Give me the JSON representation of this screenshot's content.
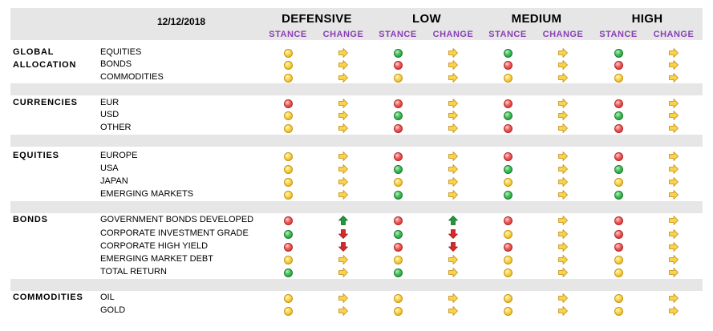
{
  "date": "12/12/2018",
  "profiles": [
    {
      "name": "DEFENSIVE",
      "stance_label": "STANCE",
      "change_label": "CHANGE"
    },
    {
      "name": "LOW",
      "stance_label": "STANCE",
      "change_label": "CHANGE"
    },
    {
      "name": "MEDIUM",
      "stance_label": "STANCE",
      "change_label": "CHANGE"
    },
    {
      "name": "HIGH",
      "stance_label": "STANCE",
      "change_label": "CHANGE"
    }
  ],
  "colors": {
    "yellow": "#f9d44a",
    "green": "#3fbf5a",
    "red": "#ef5b5b",
    "header_bg": "#e6e6e6",
    "sub_label": "#8a3fb5",
    "arrow_up": "#1f9a3a",
    "arrow_down": "#d62a2a"
  },
  "sections": [
    {
      "title": "GLOBAL\nALLOCATION",
      "rows": [
        {
          "label": "EQUITIES",
          "cells": [
            [
              "yellow",
              "right"
            ],
            [
              "green",
              "right"
            ],
            [
              "green",
              "right"
            ],
            [
              "green",
              "right"
            ]
          ]
        },
        {
          "label": "BONDS",
          "cells": [
            [
              "yellow",
              "right"
            ],
            [
              "red",
              "right"
            ],
            [
              "red",
              "right"
            ],
            [
              "red",
              "right"
            ]
          ]
        },
        {
          "label": "COMMODITIES",
          "cells": [
            [
              "yellow",
              "right"
            ],
            [
              "yellow",
              "right"
            ],
            [
              "yellow",
              "right"
            ],
            [
              "yellow",
              "right"
            ]
          ]
        }
      ]
    },
    {
      "title": "CURRENCIES",
      "rows": [
        {
          "label": "EUR",
          "cells": [
            [
              "red",
              "right"
            ],
            [
              "red",
              "right"
            ],
            [
              "red",
              "right"
            ],
            [
              "red",
              "right"
            ]
          ]
        },
        {
          "label": "USD",
          "cells": [
            [
              "yellow",
              "right"
            ],
            [
              "green",
              "right"
            ],
            [
              "green",
              "right"
            ],
            [
              "green",
              "right"
            ]
          ]
        },
        {
          "label": "OTHER",
          "cells": [
            [
              "yellow",
              "right"
            ],
            [
              "red",
              "right"
            ],
            [
              "red",
              "right"
            ],
            [
              "red",
              "right"
            ]
          ]
        }
      ]
    },
    {
      "title": "EQUITIES",
      "rows": [
        {
          "label": "EUROPE",
          "cells": [
            [
              "yellow",
              "right"
            ],
            [
              "red",
              "right"
            ],
            [
              "red",
              "right"
            ],
            [
              "red",
              "right"
            ]
          ]
        },
        {
          "label": "USA",
          "cells": [
            [
              "yellow",
              "right"
            ],
            [
              "green",
              "right"
            ],
            [
              "green",
              "right"
            ],
            [
              "green",
              "right"
            ]
          ]
        },
        {
          "label": "JAPAN",
          "cells": [
            [
              "yellow",
              "right"
            ],
            [
              "yellow",
              "right"
            ],
            [
              "yellow",
              "right"
            ],
            [
              "yellow",
              "right"
            ]
          ]
        },
        {
          "label": "EMERGING MARKETS",
          "cells": [
            [
              "yellow",
              "right"
            ],
            [
              "green",
              "right"
            ],
            [
              "green",
              "right"
            ],
            [
              "green",
              "right"
            ]
          ]
        }
      ]
    },
    {
      "title": "BONDS",
      "rows": [
        {
          "label": "GOVERNMENT BONDS DEVELOPED",
          "cells": [
            [
              "red",
              "up"
            ],
            [
              "red",
              "up"
            ],
            [
              "red",
              "right"
            ],
            [
              "red",
              "right"
            ]
          ]
        },
        {
          "label": "CORPORATE INVESTMENT GRADE",
          "cells": [
            [
              "green",
              "down"
            ],
            [
              "green",
              "down"
            ],
            [
              "yellow",
              "right"
            ],
            [
              "red",
              "right"
            ]
          ]
        },
        {
          "label": "CORPORATE HIGH YIELD",
          "cells": [
            [
              "red",
              "down"
            ],
            [
              "red",
              "down"
            ],
            [
              "red",
              "right"
            ],
            [
              "red",
              "right"
            ]
          ]
        },
        {
          "label": "EMERGING MARKET DEBT",
          "cells": [
            [
              "yellow",
              "right"
            ],
            [
              "yellow",
              "right"
            ],
            [
              "yellow",
              "right"
            ],
            [
              "yellow",
              "right"
            ]
          ]
        },
        {
          "label": "TOTAL RETURN",
          "cells": [
            [
              "green",
              "right"
            ],
            [
              "green",
              "right"
            ],
            [
              "yellow",
              "right"
            ],
            [
              "yellow",
              "right"
            ]
          ]
        }
      ]
    },
    {
      "title": "COMMODITIES",
      "rows": [
        {
          "label": "OIL",
          "cells": [
            [
              "yellow",
              "right"
            ],
            [
              "yellow",
              "right"
            ],
            [
              "yellow",
              "right"
            ],
            [
              "yellow",
              "right"
            ]
          ]
        },
        {
          "label": "GOLD",
          "cells": [
            [
              "yellow",
              "right"
            ],
            [
              "yellow",
              "right"
            ],
            [
              "yellow",
              "right"
            ],
            [
              "yellow",
              "right"
            ]
          ]
        }
      ]
    }
  ]
}
